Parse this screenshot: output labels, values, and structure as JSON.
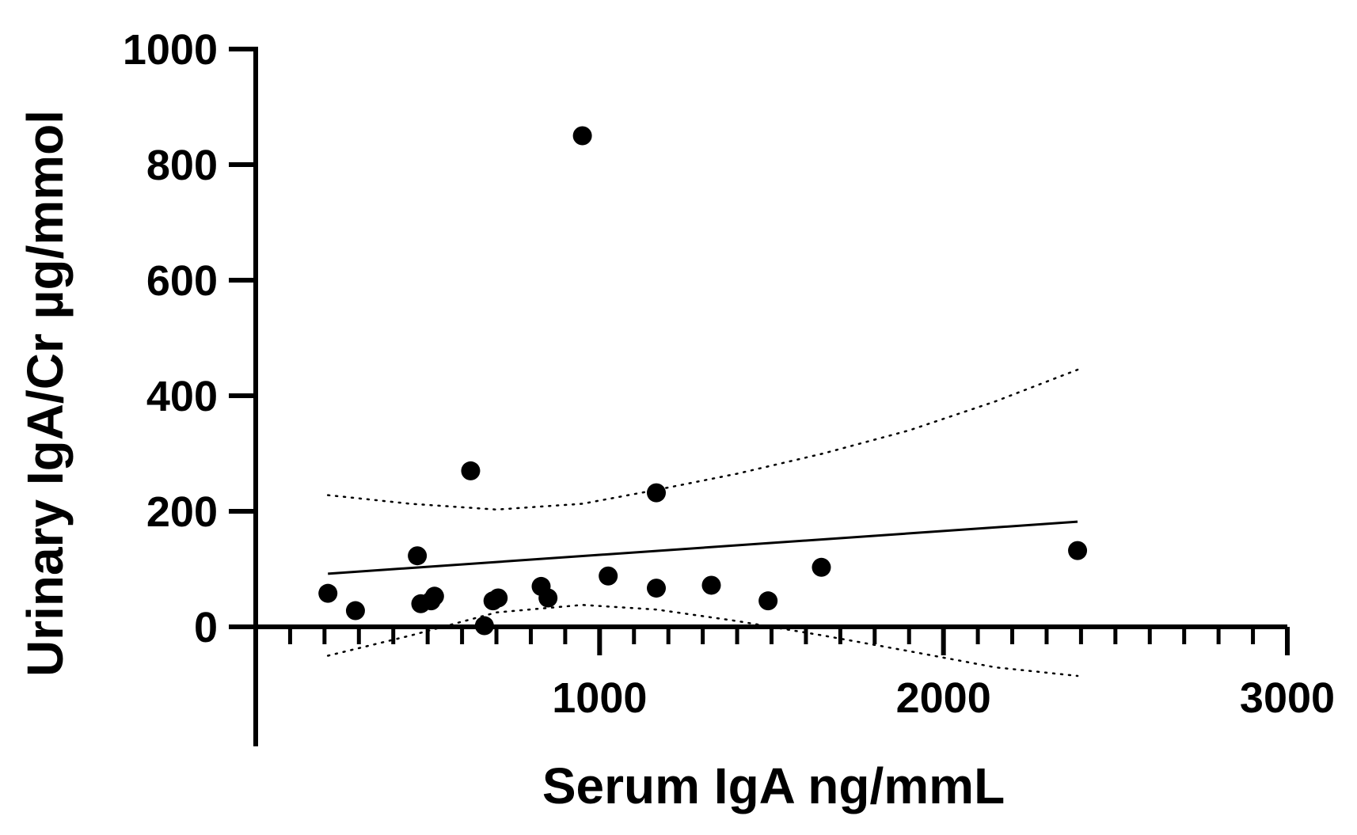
{
  "chart_data": {
    "type": "scatter",
    "title": "",
    "xlabel": "Serum IgA ng/mmL",
    "ylabel": "Urinary IgA/Cr µg/mmol",
    "xlim": [
      0,
      3000
    ],
    "ylim": [
      -200,
      1000
    ],
    "x_ticks": [
      1000,
      2000,
      3000
    ],
    "x_tick_labels": [
      "1000",
      "2000",
      "3000"
    ],
    "x_minor_tick_step": 100,
    "y_ticks": [
      0,
      200,
      400,
      600,
      800,
      1000
    ],
    "y_tick_labels": [
      "0",
      "200",
      "400",
      "600",
      "800",
      "1000"
    ],
    "grid": false,
    "legend": "none",
    "points": [
      {
        "x": 210,
        "y": 58
      },
      {
        "x": 290,
        "y": 28
      },
      {
        "x": 470,
        "y": 123
      },
      {
        "x": 480,
        "y": 40
      },
      {
        "x": 510,
        "y": 45
      },
      {
        "x": 520,
        "y": 53
      },
      {
        "x": 625,
        "y": 270
      },
      {
        "x": 665,
        "y": 2
      },
      {
        "x": 690,
        "y": 45
      },
      {
        "x": 705,
        "y": 50
      },
      {
        "x": 830,
        "y": 70
      },
      {
        "x": 850,
        "y": 50
      },
      {
        "x": 950,
        "y": 850
      },
      {
        "x": 1025,
        "y": 88
      },
      {
        "x": 1165,
        "y": 232
      },
      {
        "x": 1165,
        "y": 67
      },
      {
        "x": 1325,
        "y": 72
      },
      {
        "x": 1490,
        "y": 45
      },
      {
        "x": 1645,
        "y": 103
      },
      {
        "x": 2390,
        "y": 132
      }
    ],
    "regression": {
      "x_start": 210,
      "x_end": 2390,
      "y_start": 92,
      "y_end": 182
    },
    "confidence_band": {
      "upper": [
        [
          210,
          228
        ],
        [
          450,
          213
        ],
        [
          700,
          203
        ],
        [
          950,
          213
        ],
        [
          1165,
          237
        ],
        [
          1400,
          265
        ],
        [
          1650,
          300
        ],
        [
          1900,
          340
        ],
        [
          2150,
          390
        ],
        [
          2390,
          445
        ]
      ],
      "lower": [
        [
          210,
          -50
        ],
        [
          450,
          -15
        ],
        [
          700,
          25
        ],
        [
          950,
          38
        ],
        [
          1165,
          30
        ],
        [
          1400,
          10
        ],
        [
          1650,
          -15
        ],
        [
          1900,
          -42
        ],
        [
          2150,
          -70
        ],
        [
          2390,
          -85
        ]
      ]
    },
    "colors": {
      "points": "#000000",
      "line": "#000000",
      "axes": "#000000"
    }
  }
}
